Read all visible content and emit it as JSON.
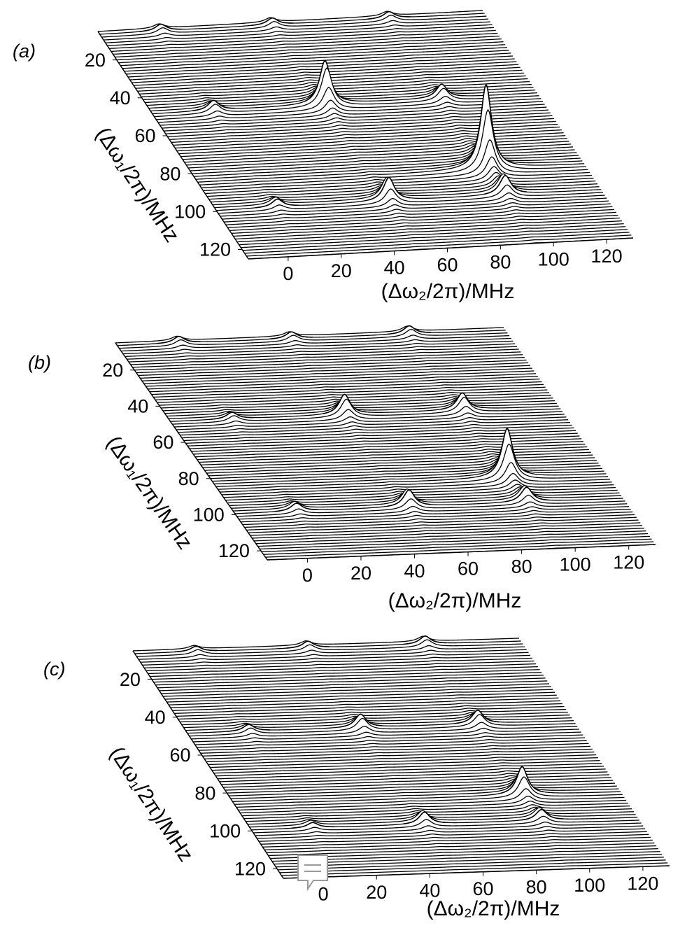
{
  "chart_data": [
    {
      "type": "waterfall",
      "panel_label": "(a)",
      "xlabel": "(Δω₂/2π)/MHz",
      "ylabel": "(Δω₁/2π)/MHz",
      "xlim": [
        -15,
        130
      ],
      "ylim": [
        5,
        125
      ],
      "xticks": [
        0,
        20,
        40,
        60,
        80,
        100,
        120
      ],
      "yticks": [
        20,
        40,
        60,
        80,
        100,
        120
      ],
      "peaks": {
        "x": [
          8,
          50,
          94,
          8,
          50,
          94,
          8,
          50,
          94,
          93
        ],
        "y": [
          7,
          7,
          7,
          49,
          49,
          49,
          99,
          99,
          99,
          86
        ],
        "z": [
          1,
          1,
          1,
          1.5,
          6.5,
          2,
          1.2,
          3.5,
          2.5,
          12
        ]
      }
    },
    {
      "type": "waterfall",
      "panel_label": "(b)",
      "xlabel": "(Δω₂/2π)/MHz",
      "ylabel": "(Δω₁/2π)/MHz",
      "xlim": [
        -15,
        130
      ],
      "ylim": [
        5,
        125
      ],
      "xticks": [
        0,
        20,
        40,
        60,
        80,
        100,
        120
      ],
      "yticks": [
        20,
        40,
        60,
        80,
        100,
        120
      ],
      "peaks": {
        "x": [
          8,
          50,
          94,
          8,
          50,
          94,
          8,
          50,
          94,
          93
        ],
        "y": [
          7,
          7,
          7,
          49,
          49,
          49,
          99,
          99,
          99,
          86
        ],
        "z": [
          1,
          1,
          1.2,
          1,
          3,
          2.5,
          1.2,
          2.5,
          2,
          7
        ]
      }
    },
    {
      "type": "waterfall",
      "panel_label": "(c)",
      "xlabel": "(Δω₂/2π)/MHz",
      "ylabel": "(Δω₁/2π)/MHz",
      "xlim": [
        -15,
        130
      ],
      "ylim": [
        5,
        125
      ],
      "xticks": [
        0,
        20,
        40,
        60,
        80,
        100,
        120
      ],
      "yticks": [
        20,
        40,
        60,
        80,
        100,
        120
      ],
      "peaks": {
        "x": [
          8,
          50,
          94,
          8,
          50,
          94,
          8,
          50,
          94,
          93
        ],
        "y": [
          7,
          7,
          7,
          49,
          49,
          49,
          99,
          99,
          99,
          86
        ],
        "z": [
          0.8,
          1,
          1.2,
          1,
          2,
          2,
          0.8,
          1.8,
          1.5,
          4
        ]
      }
    }
  ]
}
